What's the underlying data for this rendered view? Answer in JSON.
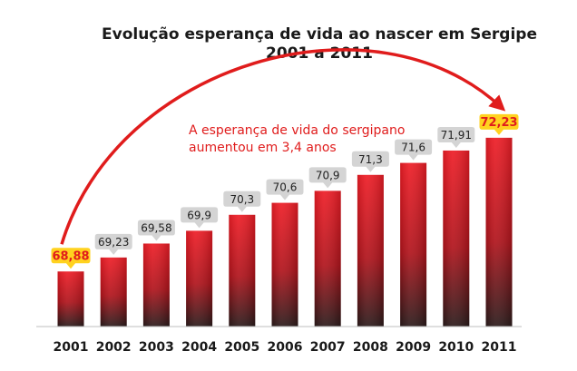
{
  "chart_data": {
    "type": "bar",
    "title": "Evolução esperança de vida ao nascer em Sergipe",
    "subtitle": "2001 a 2011",
    "categories": [
      "2001",
      "2002",
      "2003",
      "2004",
      "2005",
      "2006",
      "2007",
      "2008",
      "2009",
      "2010",
      "2011"
    ],
    "values": [
      68.88,
      69.23,
      69.58,
      69.9,
      70.3,
      70.6,
      70.9,
      71.3,
      71.6,
      71.91,
      72.23
    ],
    "data_labels": [
      "68,88",
      "69,23",
      "69,58",
      "69,9",
      "70,3",
      "70,6",
      "70,9",
      "71,3",
      "71,6",
      "71,91",
      "72,23"
    ],
    "highlighted": [
      "2001",
      "2011"
    ],
    "annotation": {
      "line1": "A esperança de vida do sergipano",
      "line2": "aumentou em  3,4 anos"
    },
    "ylim": [
      67.5,
      72.5
    ],
    "grid": false,
    "legend": "none",
    "colors": {
      "bar_top": "#ee1c25",
      "bar_mid": "#b0131b",
      "bar_bottom": "#2a1a1a",
      "arrow": "#e01c1c",
      "label_box": "#d4d4d4",
      "label_box_highlight": "#ffd21f",
      "label_text_highlight": "#e01c1c",
      "baseline": "#bfbfbf"
    }
  }
}
